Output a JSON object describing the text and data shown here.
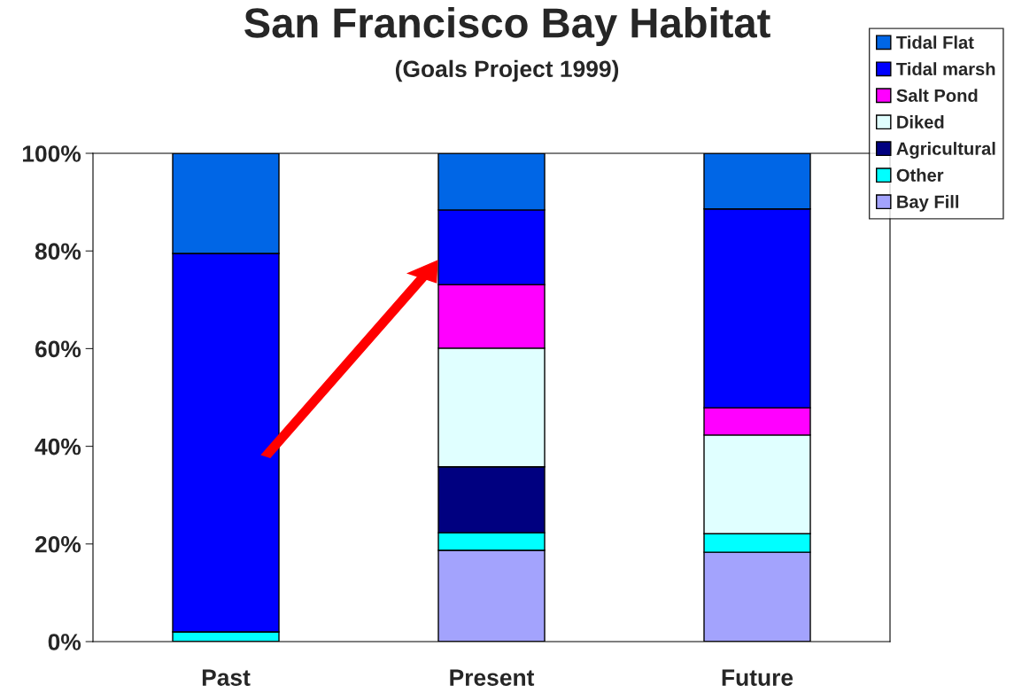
{
  "chart_data": {
    "type": "bar",
    "title": "San Francisco Bay Habitat",
    "subtitle": "(Goals Project 1999)",
    "categories": [
      "Past",
      "Present",
      "Future"
    ],
    "stacked": true,
    "series": [
      {
        "name": "Bay Fill",
        "color": "#a3a3fd",
        "values": [
          0,
          18.7,
          18.3
        ]
      },
      {
        "name": "Other",
        "color": "#00ffff",
        "values": [
          2.0,
          3.6,
          3.8
        ]
      },
      {
        "name": "Agricultural",
        "color": "#000080",
        "values": [
          0,
          13.5,
          0
        ]
      },
      {
        "name": "Diked",
        "color": "#e0ffff",
        "values": [
          0,
          24.3,
          20.2
        ]
      },
      {
        "name": "Salt Pond",
        "color": "#ff00ff",
        "values": [
          0,
          13.0,
          5.6
        ]
      },
      {
        "name": "Tidal marsh",
        "color": "#0000ff",
        "values": [
          77.5,
          15.3,
          40.7
        ]
      },
      {
        "name": "Tidal Flat",
        "color": "#0066e6",
        "values": [
          20.5,
          11.6,
          11.4
        ]
      }
    ],
    "ylim": [
      0,
      100
    ],
    "yticks": [
      {
        "value": 0,
        "label": "0%"
      },
      {
        "value": 20,
        "label": "20%"
      },
      {
        "value": 40,
        "label": "40%"
      },
      {
        "value": 60,
        "label": "60%"
      },
      {
        "value": 80,
        "label": "80%"
      },
      {
        "value": 100,
        "label": "100%"
      }
    ],
    "grid": false,
    "legend": "top right"
  }
}
